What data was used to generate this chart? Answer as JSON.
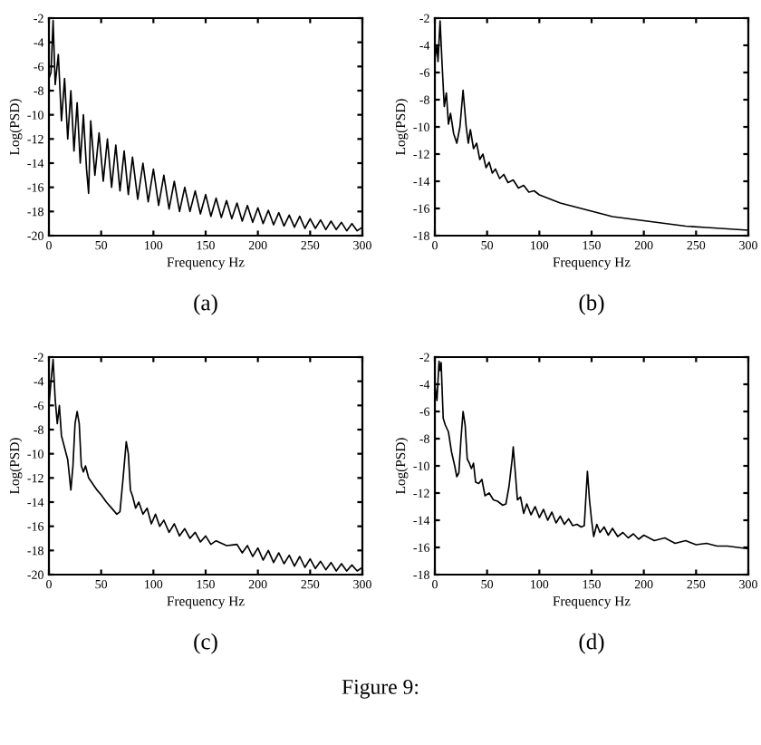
{
  "chart_data": [
    {
      "type": "line",
      "title": "(a)",
      "xlabel": "Frequency Hz",
      "ylabel": "Log(PSD)",
      "xlim": [
        0,
        300
      ],
      "ylim": [
        -20,
        -2
      ],
      "xticks": [
        0,
        50,
        100,
        150,
        200,
        250,
        300
      ],
      "yticks": [
        -20,
        -18,
        -16,
        -14,
        -12,
        -10,
        -8,
        -6,
        -4,
        -2
      ],
      "grid": false,
      "legend": false,
      "marker": "none",
      "line_style": "solid",
      "series": [
        {
          "color": "#000000",
          "x": [
            0,
            2,
            4,
            6,
            9,
            12,
            15,
            18,
            21,
            24,
            27,
            30,
            33,
            36,
            38,
            40,
            44,
            48,
            52,
            56,
            60,
            64,
            68,
            72,
            76,
            80,
            85,
            90,
            95,
            100,
            105,
            110,
            115,
            120,
            125,
            130,
            135,
            140,
            145,
            150,
            155,
            160,
            165,
            170,
            175,
            180,
            185,
            190,
            195,
            200,
            205,
            210,
            215,
            220,
            225,
            230,
            235,
            240,
            245,
            250,
            255,
            260,
            265,
            270,
            275,
            280,
            285,
            290,
            295,
            300
          ],
          "values": [
            -7,
            -6.5,
            -2.2,
            -7.5,
            -5,
            -10.5,
            -7,
            -12,
            -8,
            -13,
            -9,
            -14,
            -10,
            -14.5,
            -16.5,
            -10.5,
            -15,
            -11.5,
            -15.5,
            -12,
            -16,
            -12.5,
            -16.3,
            -13,
            -16.6,
            -13.5,
            -17,
            -14,
            -17.2,
            -14.5,
            -17.5,
            -15,
            -17.8,
            -15.5,
            -18,
            -16,
            -18,
            -16.3,
            -18.2,
            -16.6,
            -18.4,
            -16.9,
            -18.5,
            -17.1,
            -18.6,
            -17.3,
            -18.8,
            -17.5,
            -18.9,
            -17.7,
            -19,
            -17.9,
            -19.1,
            -18.1,
            -19.2,
            -18.3,
            -19.3,
            -18.4,
            -19.4,
            -18.6,
            -19.4,
            -18.7,
            -19.5,
            -18.8,
            -19.5,
            -18.9,
            -19.6,
            -19,
            -19.6,
            -19.3
          ]
        }
      ]
    },
    {
      "type": "line",
      "title": "(b)",
      "xlabel": "Frequency Hz",
      "ylabel": "Log(PSD)",
      "xlim": [
        0,
        300
      ],
      "ylim": [
        -18,
        -2
      ],
      "xticks": [
        0,
        50,
        100,
        150,
        200,
        250,
        300
      ],
      "yticks": [
        -18,
        -16,
        -14,
        -12,
        -10,
        -8,
        -6,
        -4,
        -2
      ],
      "grid": false,
      "legend": false,
      "marker": "none",
      "line_style": "solid",
      "series": [
        {
          "color": "#000000",
          "x": [
            0,
            2,
            3,
            5,
            7,
            9,
            11,
            13,
            15,
            18,
            21,
            24,
            27,
            30,
            32,
            34,
            37,
            40,
            43,
            46,
            49,
            52,
            55,
            58,
            62,
            66,
            70,
            75,
            80,
            85,
            90,
            95,
            100,
            110,
            120,
            130,
            140,
            150,
            160,
            170,
            180,
            190,
            200,
            220,
            240,
            260,
            280,
            300
          ],
          "values": [
            -5,
            -4,
            -5.2,
            -2.2,
            -5.5,
            -8.5,
            -7.5,
            -9.8,
            -9,
            -10.5,
            -11.2,
            -10,
            -7.3,
            -10,
            -11.2,
            -10.2,
            -11.6,
            -11.2,
            -12.4,
            -12,
            -13,
            -12.6,
            -13.4,
            -13.1,
            -13.8,
            -13.5,
            -14.1,
            -13.9,
            -14.5,
            -14.3,
            -14.8,
            -14.7,
            -15,
            -15.3,
            -15.6,
            -15.8,
            -16,
            -16.2,
            -16.4,
            -16.6,
            -16.7,
            -16.8,
            -16.9,
            -17.1,
            -17.3,
            -17.4,
            -17.5,
            -17.6
          ]
        }
      ]
    },
    {
      "type": "line",
      "title": "(c)",
      "xlabel": "Frequency Hz",
      "ylabel": "Log(PSD)",
      "xlim": [
        0,
        300
      ],
      "ylim": [
        -20,
        -2
      ],
      "xticks": [
        0,
        50,
        100,
        150,
        200,
        250,
        300
      ],
      "yticks": [
        -20,
        -18,
        -16,
        -14,
        -12,
        -10,
        -8,
        -6,
        -4,
        -2
      ],
      "grid": false,
      "legend": false,
      "marker": "none",
      "line_style": "solid",
      "series": [
        {
          "color": "#000000",
          "x": [
            0,
            2,
            4,
            6,
            8,
            10,
            12,
            15,
            18,
            21,
            23,
            25,
            27,
            29,
            31,
            33,
            35,
            38,
            42,
            46,
            50,
            55,
            60,
            65,
            68,
            71,
            74,
            76,
            78,
            80,
            83,
            86,
            90,
            94,
            98,
            102,
            106,
            110,
            115,
            120,
            125,
            130,
            135,
            140,
            145,
            150,
            155,
            160,
            170,
            180,
            185,
            190,
            195,
            200,
            205,
            210,
            215,
            220,
            225,
            230,
            235,
            240,
            245,
            250,
            255,
            260,
            265,
            270,
            275,
            280,
            285,
            290,
            295,
            300
          ],
          "values": [
            -6,
            -4,
            -2.2,
            -5.5,
            -7.5,
            -6,
            -8.5,
            -9.5,
            -10.5,
            -13,
            -11,
            -7.5,
            -6.5,
            -7.5,
            -11,
            -11.5,
            -11,
            -12,
            -12.5,
            -13,
            -13.4,
            -14,
            -14.5,
            -15,
            -14.8,
            -12,
            -9,
            -10,
            -13,
            -13.5,
            -14.5,
            -14,
            -15,
            -14.5,
            -15.8,
            -15,
            -16,
            -15.5,
            -16.5,
            -15.8,
            -16.8,
            -16.2,
            -17,
            -16.5,
            -17.3,
            -16.8,
            -17.5,
            -17.2,
            -17.6,
            -17.5,
            -18.2,
            -17.6,
            -18.5,
            -17.8,
            -18.8,
            -18,
            -19,
            -18.2,
            -19.1,
            -18.4,
            -19.3,
            -18.5,
            -19.4,
            -18.7,
            -19.5,
            -18.9,
            -19.6,
            -19,
            -19.7,
            -19.1,
            -19.7,
            -19.2,
            -19.7,
            -19.4
          ]
        }
      ]
    },
    {
      "type": "line",
      "title": "(d)",
      "xlabel": "Frequency Hz",
      "ylabel": "Log(PSD)",
      "xlim": [
        0,
        300
      ],
      "ylim": [
        -18,
        -2
      ],
      "xticks": [
        0,
        50,
        100,
        150,
        200,
        250,
        300
      ],
      "yticks": [
        -18,
        -16,
        -14,
        -12,
        -10,
        -8,
        -6,
        -4,
        -2
      ],
      "grid": false,
      "legend": false,
      "marker": "none",
      "line_style": "solid",
      "annotations": [
        "Figure 9:"
      ],
      "series": [
        {
          "color": "#000000",
          "x": [
            0,
            2,
            4,
            5,
            6,
            8,
            10,
            13,
            16,
            19,
            21,
            23,
            25,
            27,
            29,
            31,
            33,
            35,
            37,
            39,
            42,
            45,
            48,
            52,
            56,
            60,
            65,
            68,
            71,
            74,
            75,
            77,
            79,
            82,
            85,
            88,
            92,
            96,
            100,
            104,
            108,
            112,
            116,
            120,
            124,
            128,
            132,
            136,
            140,
            143,
            146,
            148,
            150,
            152,
            155,
            158,
            162,
            166,
            170,
            175,
            180,
            185,
            190,
            195,
            200,
            210,
            220,
            230,
            240,
            250,
            260,
            270,
            280,
            290,
            300
          ],
          "values": [
            -4,
            -5.2,
            -2.3,
            -3,
            -2.4,
            -6.5,
            -7,
            -7.5,
            -9,
            -10,
            -10.8,
            -10.5,
            -8,
            -6,
            -7,
            -9.5,
            -9.8,
            -10.2,
            -9.8,
            -11.2,
            -11.3,
            -11,
            -12.2,
            -12,
            -12.5,
            -12.6,
            -12.9,
            -12.8,
            -11.5,
            -9.5,
            -8.6,
            -10.5,
            -12.5,
            -12.3,
            -13.5,
            -12.8,
            -13.6,
            -13,
            -13.8,
            -13.2,
            -14,
            -13.4,
            -14.2,
            -13.7,
            -14.3,
            -13.9,
            -14.4,
            -14.3,
            -14.5,
            -14.4,
            -10.4,
            -12.5,
            -14,
            -15.2,
            -14.3,
            -14.9,
            -14.5,
            -15.1,
            -14.6,
            -15.2,
            -14.9,
            -15.3,
            -15,
            -15.4,
            -15.1,
            -15.5,
            -15.3,
            -15.7,
            -15.5,
            -15.8,
            -15.7,
            -15.9,
            -15.9,
            -16,
            -16.1
          ]
        }
      ]
    }
  ]
}
